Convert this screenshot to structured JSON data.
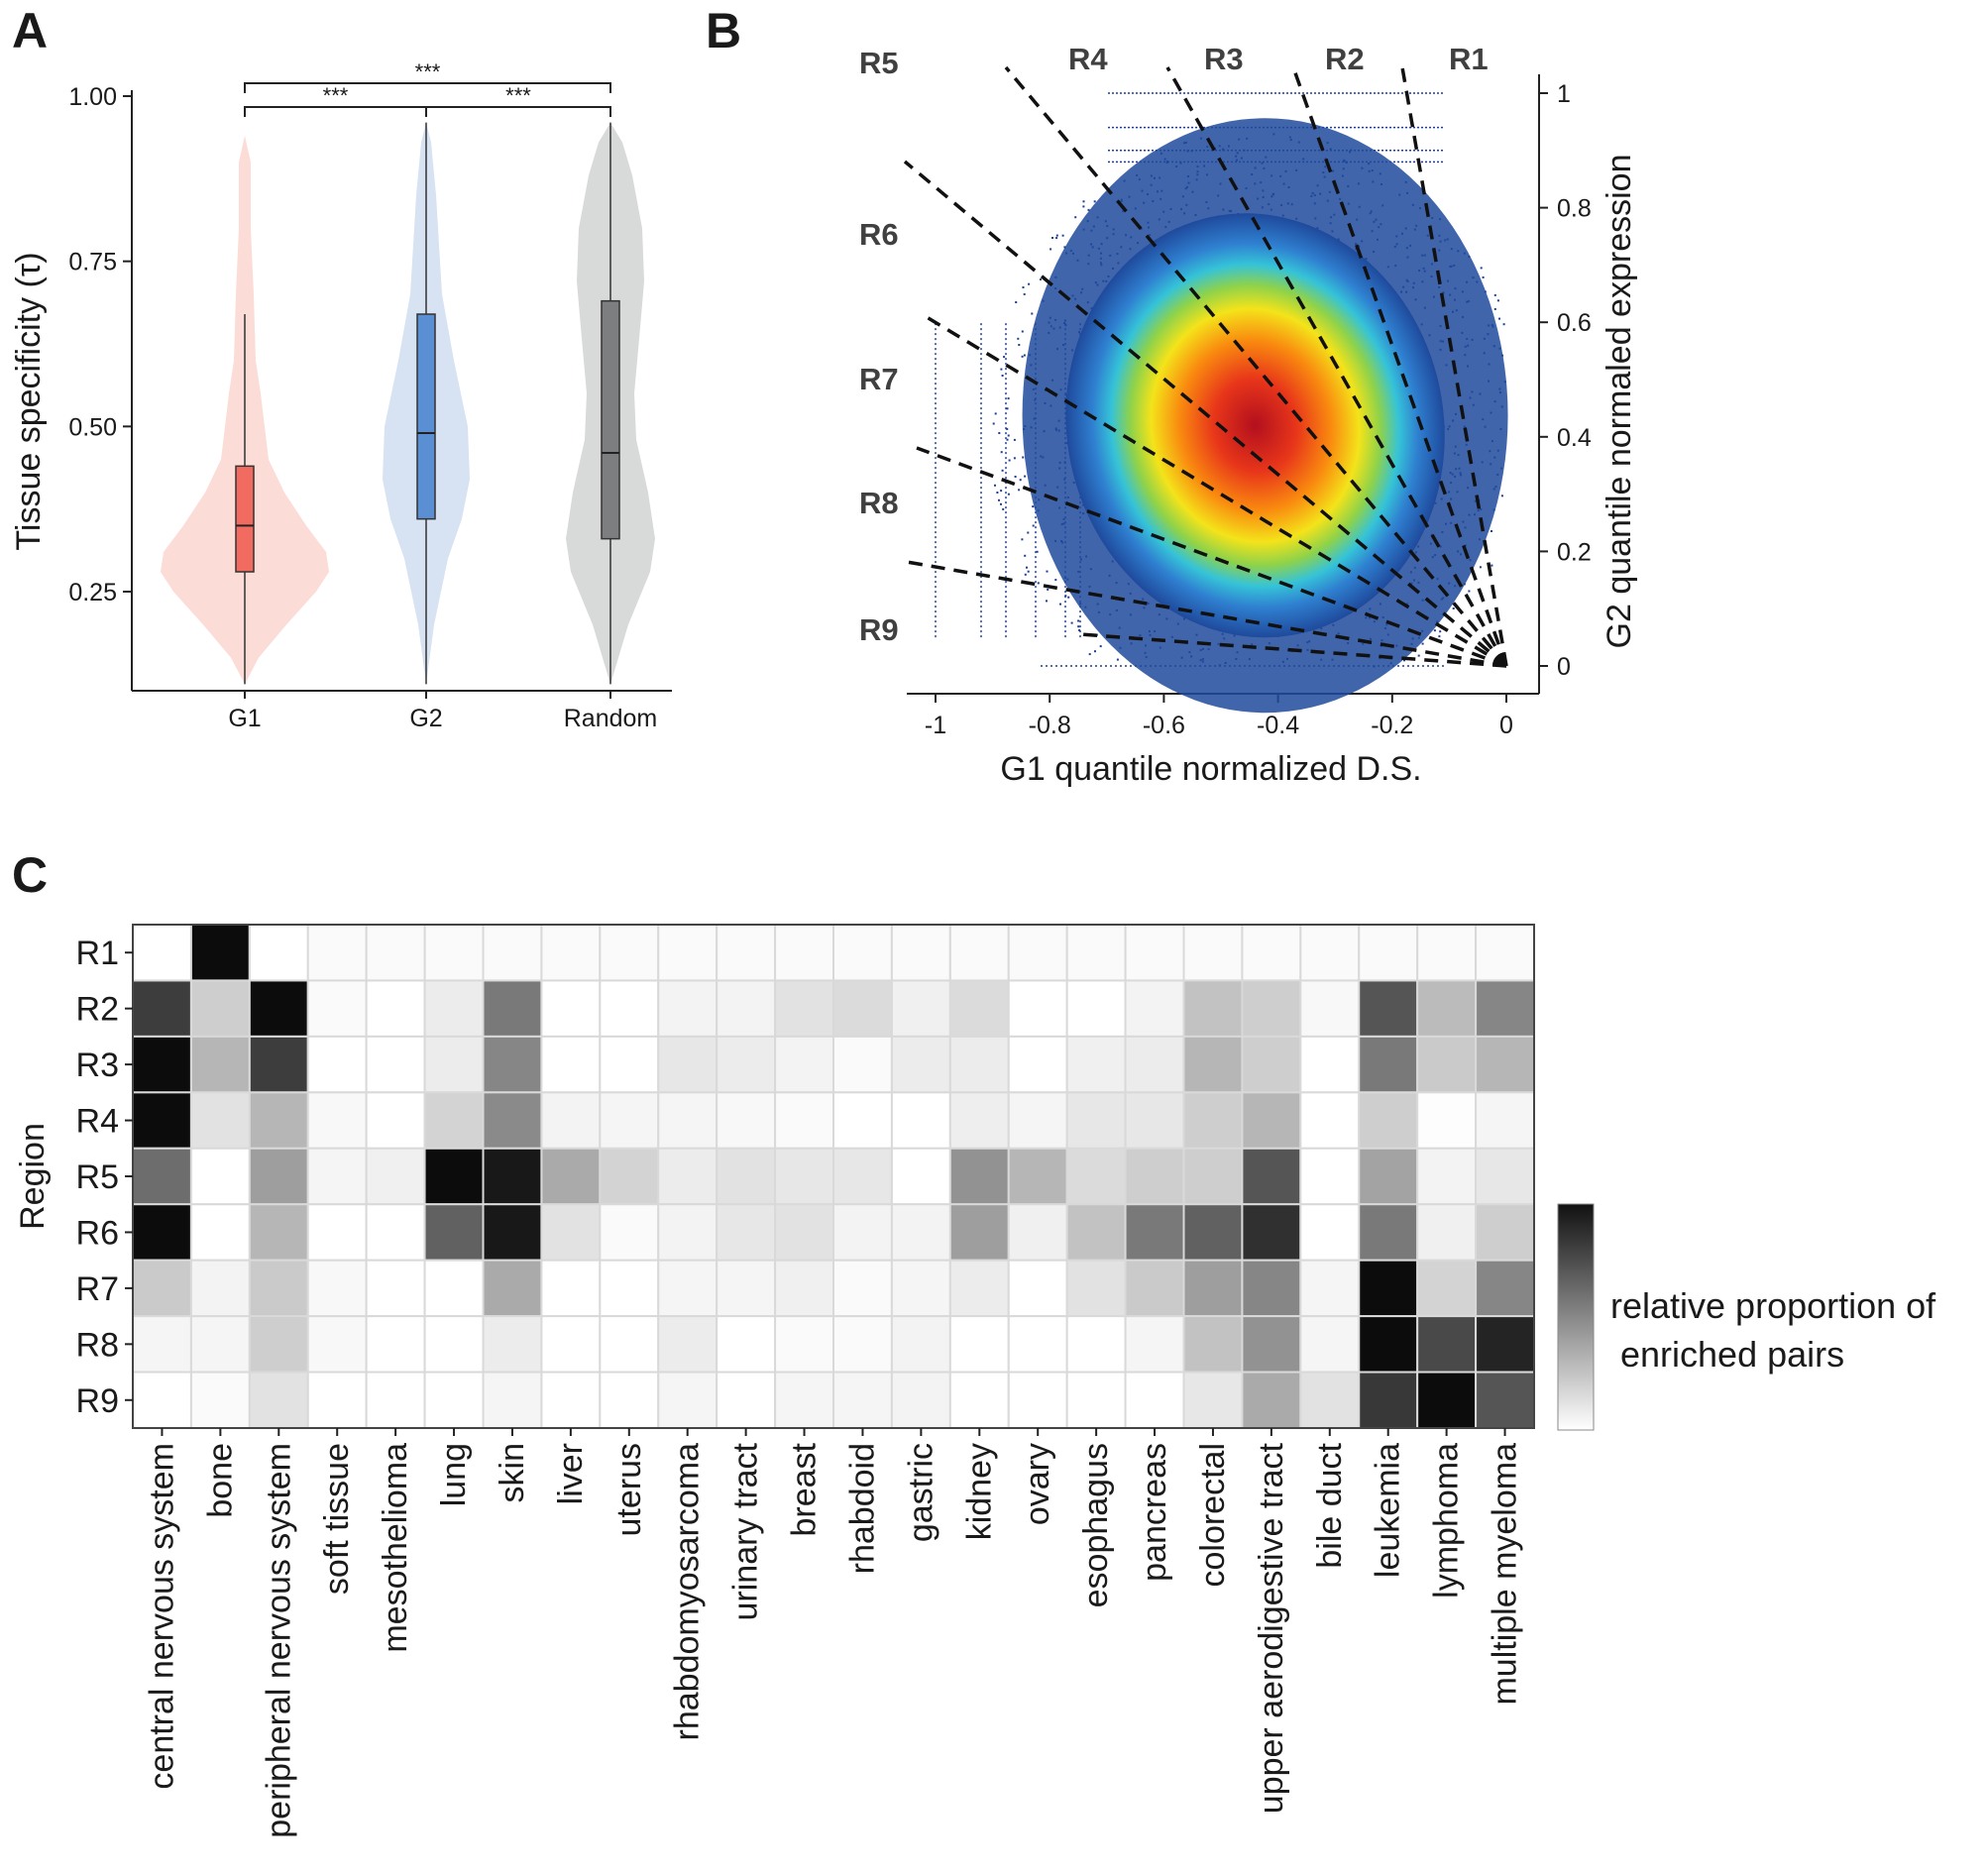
{
  "panels": {
    "a": "A",
    "b": "B",
    "c": "C"
  },
  "colors": {
    "g1": "#f26b60",
    "g1_violin": "#fbdcd7",
    "g2": "#5b8fd4",
    "g2_violin": "#d7e2f2",
    "random": "#7d7e80",
    "random_violin": "#d8d9d9"
  },
  "chart_data": [
    {
      "type": "violin",
      "panel": "A",
      "ylabel": "Tissue specificity (τ)",
      "ylim": [
        0.1,
        1.0
      ],
      "yticks": [
        "0.25",
        "0.50",
        "0.75",
        "1.00"
      ],
      "categories": [
        "G1",
        "G2",
        "Random"
      ],
      "boxes": [
        {
          "name": "G1",
          "min": 0.11,
          "q1": 0.28,
          "median": 0.35,
          "q3": 0.44,
          "max": 0.67,
          "violin_max": 0.94
        },
        {
          "name": "G2",
          "min": 0.11,
          "q1": 0.36,
          "median": 0.49,
          "q3": 0.67,
          "max": 0.96,
          "violin_max": 0.96
        },
        {
          "name": "Random",
          "min": 0.11,
          "q1": 0.33,
          "median": 0.46,
          "q3": 0.69,
          "max": 0.96,
          "violin_max": 0.96
        }
      ],
      "significance": [
        {
          "from": "G1",
          "to": "G2",
          "label": "***"
        },
        {
          "from": "G2",
          "to": "Random",
          "label": "***"
        },
        {
          "from": "G1",
          "to": "Random",
          "label": "***"
        }
      ]
    },
    {
      "type": "scatter",
      "panel": "B",
      "xlabel": "G1 quantile normalized D.S.",
      "ylabel": "G2 quantile normaled expression",
      "xlim": [
        -1.05,
        0.02
      ],
      "ylim": [
        -0.02,
        1.04
      ],
      "xticks": [
        "-1",
        "-0.8",
        "-0.6",
        "-0.4",
        "-0.2",
        "0"
      ],
      "yticks": [
        "0",
        "0.2",
        "0.4",
        "0.6",
        "0.8",
        "1"
      ],
      "density_center": {
        "x": -0.44,
        "y": 0.42
      },
      "regions": [
        "R1",
        "R2",
        "R3",
        "R4",
        "R5",
        "R6",
        "R7",
        "R8",
        "R9"
      ]
    },
    {
      "type": "heatmap",
      "panel": "C",
      "ylabel": "Region",
      "colorbar_label": [
        "relative proportion of",
        " enriched pairs"
      ],
      "rows": [
        "R1",
        "R2",
        "R3",
        "R4",
        "R5",
        "R6",
        "R7",
        "R8",
        "R9"
      ],
      "columns": [
        "central nervous system",
        "bone",
        "peripheral nervous system",
        "soft tissue",
        "mesothelioma",
        "lung",
        "skin",
        "liver",
        "uterus",
        "rhabdomyosarcoma",
        "urinary tract",
        "breast",
        "rhabdoid",
        "gastric",
        "kidney",
        "ovary",
        "esophagus",
        "pancreas",
        "colorectal",
        "upper aerodigestive tract",
        "bile duct",
        "leukemia",
        "lymphoma",
        "multiple myeloma"
      ],
      "values": [
        [
          0.0,
          1.0,
          0.0,
          0.02,
          0.02,
          0.02,
          0.02,
          0.02,
          0.02,
          0.02,
          0.02,
          0.02,
          0.02,
          0.02,
          0.02,
          0.02,
          0.02,
          0.02,
          0.02,
          0.02,
          0.02,
          0.02,
          0.02,
          0.02
        ],
        [
          0.8,
          0.2,
          1.0,
          0.02,
          0.0,
          0.08,
          0.55,
          0.0,
          0.0,
          0.05,
          0.05,
          0.12,
          0.15,
          0.06,
          0.15,
          0.0,
          0.0,
          0.05,
          0.25,
          0.2,
          0.03,
          0.7,
          0.28,
          0.5
        ],
        [
          1.0,
          0.3,
          0.8,
          0.0,
          0.0,
          0.08,
          0.5,
          0.0,
          0.0,
          0.1,
          0.08,
          0.05,
          0.02,
          0.08,
          0.08,
          0.0,
          0.06,
          0.08,
          0.3,
          0.2,
          0.0,
          0.55,
          0.22,
          0.3
        ],
        [
          1.0,
          0.12,
          0.3,
          0.03,
          0.0,
          0.18,
          0.48,
          0.05,
          0.04,
          0.04,
          0.03,
          0.02,
          0.0,
          0.0,
          0.07,
          0.04,
          0.1,
          0.1,
          0.2,
          0.3,
          0.0,
          0.2,
          0.01,
          0.04
        ],
        [
          0.6,
          0.0,
          0.4,
          0.04,
          0.06,
          1.0,
          0.95,
          0.35,
          0.18,
          0.08,
          0.12,
          0.1,
          0.1,
          0.0,
          0.45,
          0.3,
          0.15,
          0.2,
          0.2,
          0.7,
          0.0,
          0.38,
          0.05,
          0.1
        ],
        [
          1.0,
          0.0,
          0.3,
          0.0,
          0.0,
          0.65,
          0.95,
          0.12,
          0.02,
          0.05,
          0.1,
          0.12,
          0.05,
          0.05,
          0.4,
          0.06,
          0.25,
          0.55,
          0.65,
          0.85,
          0.0,
          0.55,
          0.06,
          0.2
        ],
        [
          0.22,
          0.05,
          0.22,
          0.03,
          0.0,
          0.0,
          0.35,
          0.0,
          0.0,
          0.04,
          0.04,
          0.06,
          0.02,
          0.04,
          0.08,
          0.0,
          0.12,
          0.22,
          0.4,
          0.5,
          0.04,
          1.0,
          0.18,
          0.5
        ],
        [
          0.04,
          0.04,
          0.2,
          0.03,
          0.0,
          0.0,
          0.08,
          0.0,
          0.0,
          0.08,
          0.0,
          0.02,
          0.02,
          0.05,
          0.0,
          0.0,
          0.0,
          0.04,
          0.25,
          0.45,
          0.04,
          1.0,
          0.75,
          0.9
        ],
        [
          0.0,
          0.02,
          0.12,
          0.0,
          0.0,
          0.0,
          0.04,
          0.0,
          0.0,
          0.04,
          0.0,
          0.04,
          0.04,
          0.05,
          0.0,
          0.0,
          0.0,
          0.0,
          0.1,
          0.35,
          0.12,
          0.82,
          1.0,
          0.7
        ]
      ]
    }
  ]
}
